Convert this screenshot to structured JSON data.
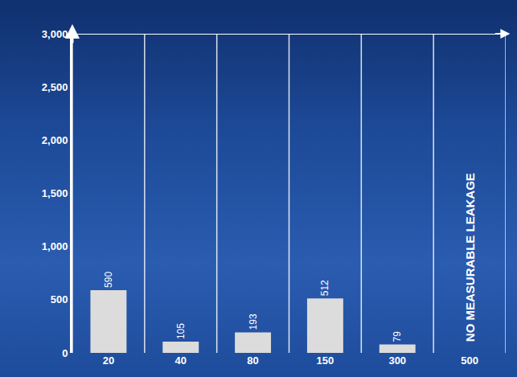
{
  "chart_data": {
    "type": "bar",
    "categories": [
      "20",
      "40",
      "80",
      "150",
      "300",
      "500"
    ],
    "values": [
      590,
      105,
      193,
      512,
      79,
      null
    ],
    "color": "#dcdcdc",
    "ylim": [
      0,
      3000
    ],
    "yticks": [
      0,
      500,
      {
        "value": 1000,
        "label": "1,000"
      },
      {
        "value": 1500,
        "label": "1,500"
      },
      {
        "value": 2000,
        "label": "2,000"
      },
      {
        "value": 2500,
        "label": "2,500"
      },
      {
        "value": 3000,
        "label": "3,000"
      }
    ],
    "grid": false,
    "data_labels": true,
    "annotations": [
      {
        "text": "NO MEASURABLE LEAKAGE",
        "category": "500"
      }
    ]
  }
}
